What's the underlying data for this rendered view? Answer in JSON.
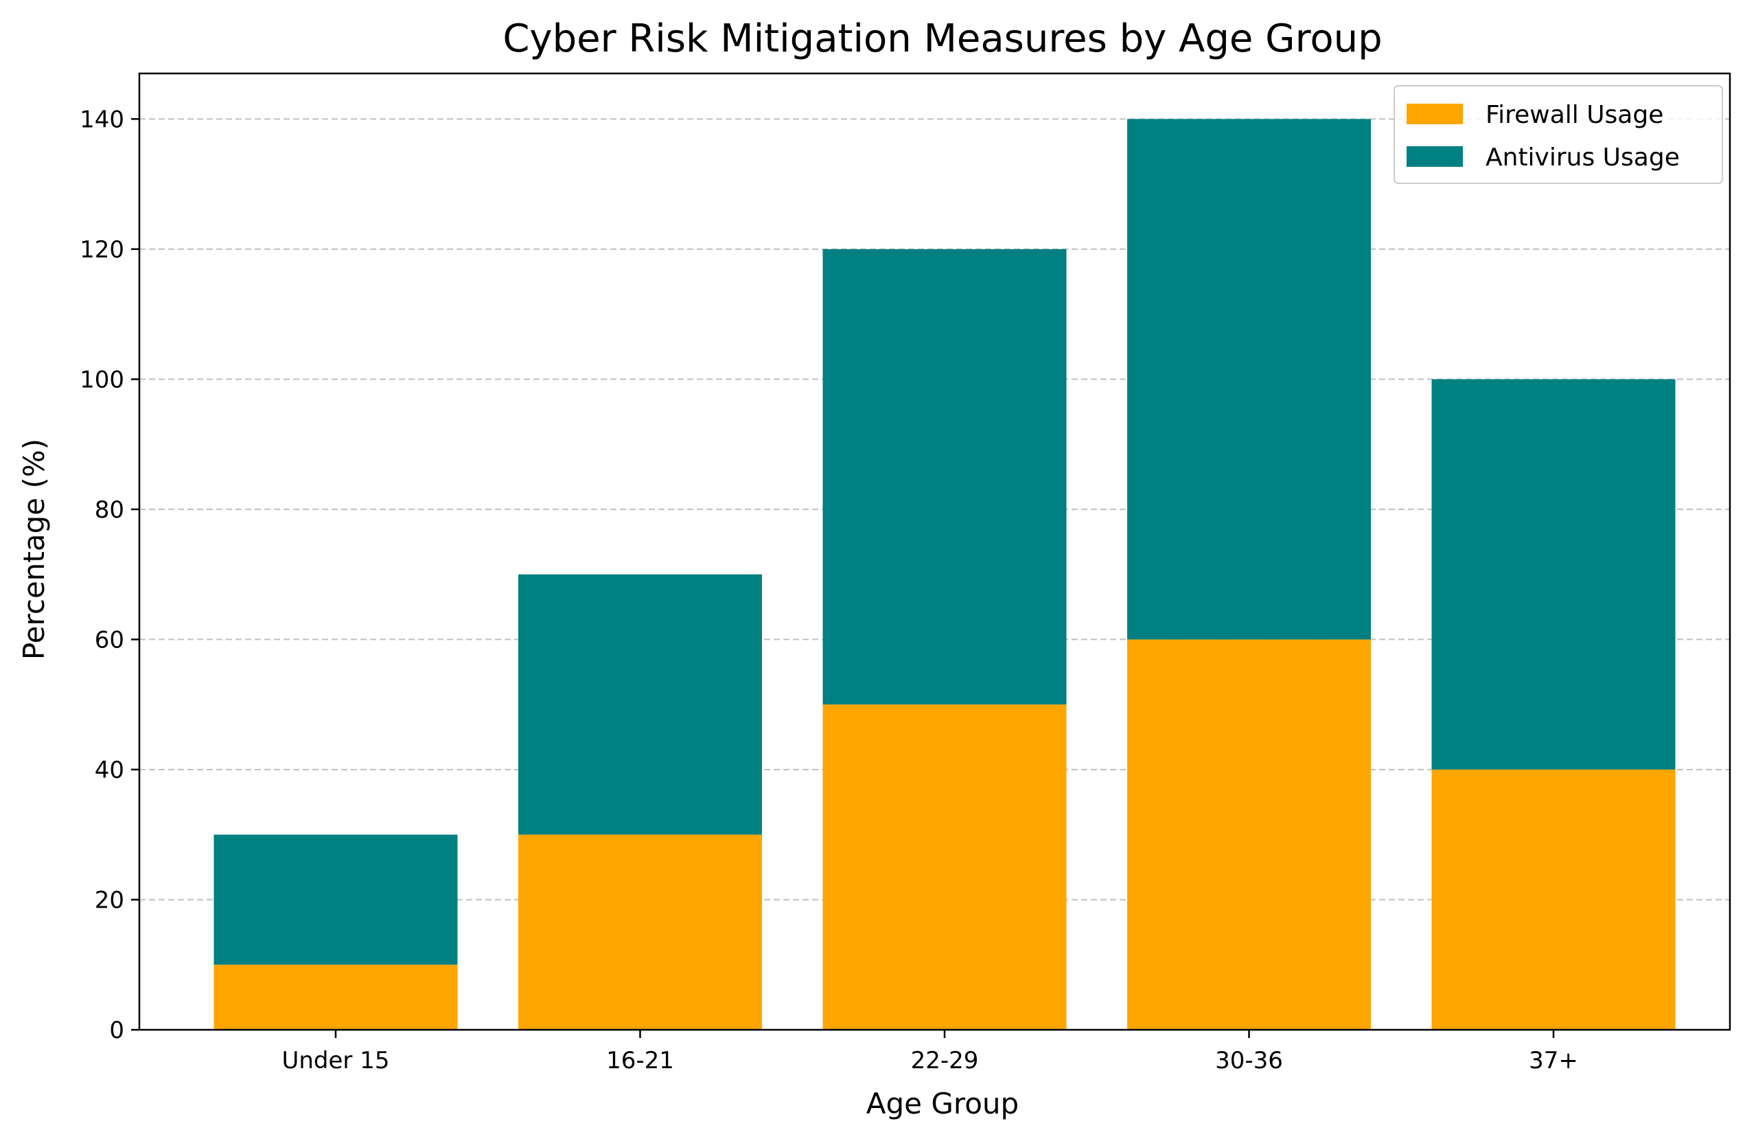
{
  "chart_data": {
    "type": "bar",
    "stacked": true,
    "title": "Cyber Risk Mitigation Measures by Age Group",
    "xlabel": "Age Group",
    "ylabel": "Percentage (%)",
    "categories": [
      "Under 15",
      "16-21",
      "22-29",
      "30-36",
      "37+"
    ],
    "series": [
      {
        "name": "Firewall Usage",
        "color": "#FFA500",
        "values": [
          10,
          30,
          50,
          60,
          40
        ]
      },
      {
        "name": "Antivirus Usage",
        "color": "#008080",
        "values": [
          20,
          40,
          70,
          80,
          60
        ]
      }
    ],
    "ylim": [
      0,
      147
    ],
    "yticks": [
      0,
      20,
      40,
      60,
      80,
      100,
      120,
      140
    ],
    "grid": {
      "axis": "y",
      "style": "dashed",
      "enabled": true
    },
    "legend": {
      "position": "top-right"
    }
  }
}
